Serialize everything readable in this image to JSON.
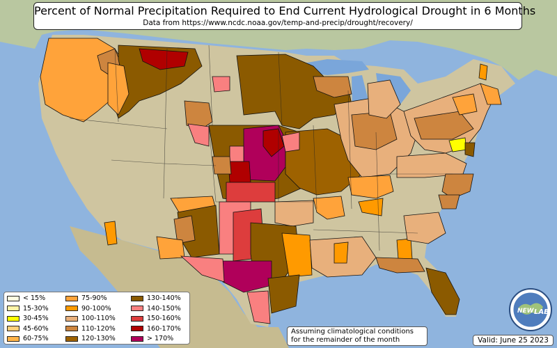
{
  "title": "Percent of Normal Precipitation Required to End Current Hydrological Drought in 6 Months",
  "subtitle": "Data from https://www.ncdc.noaa.gov/temp-and-precip/drought/recovery/",
  "note_line1": "Assuming climatological conditions",
  "note_line2": "for the remainder of the month",
  "valid": "Valid: June 25 2023",
  "logo_text_left": "NEW",
  "logo_text_right": "LAB",
  "colors": {
    "ocean": "#8fb4de",
    "land": "#c9c19b",
    "lake": "#7aa6da",
    "boundary": "#111111"
  },
  "legend": [
    {
      "label": "< 15%",
      "color": "#fffde0"
    },
    {
      "label": "15-30%",
      "color": "#fff4a8"
    },
    {
      "label": "30-45%",
      "color": "#ffff00"
    },
    {
      "label": "45-60%",
      "color": "#ffd07a"
    },
    {
      "label": "60-75%",
      "color": "#ffb54a"
    },
    {
      "label": "75-90%",
      "color": "#ffa33a"
    },
    {
      "label": "90-100%",
      "color": "#ff9a00"
    },
    {
      "label": "100-110%",
      "color": "#e8b07c"
    },
    {
      "label": "110-120%",
      "color": "#cd853f"
    },
    {
      "label": "120-130%",
      "color": "#9e6200"
    },
    {
      "label": "130-140%",
      "color": "#8b5a00"
    },
    {
      "label": "140-150%",
      "color": "#f98080"
    },
    {
      "label": "150-160%",
      "color": "#dd3d3d"
    },
    {
      "label": "160-170%",
      "color": "#b00000"
    },
    {
      "label": "> 170%",
      "color": "#b0005a"
    }
  ]
}
